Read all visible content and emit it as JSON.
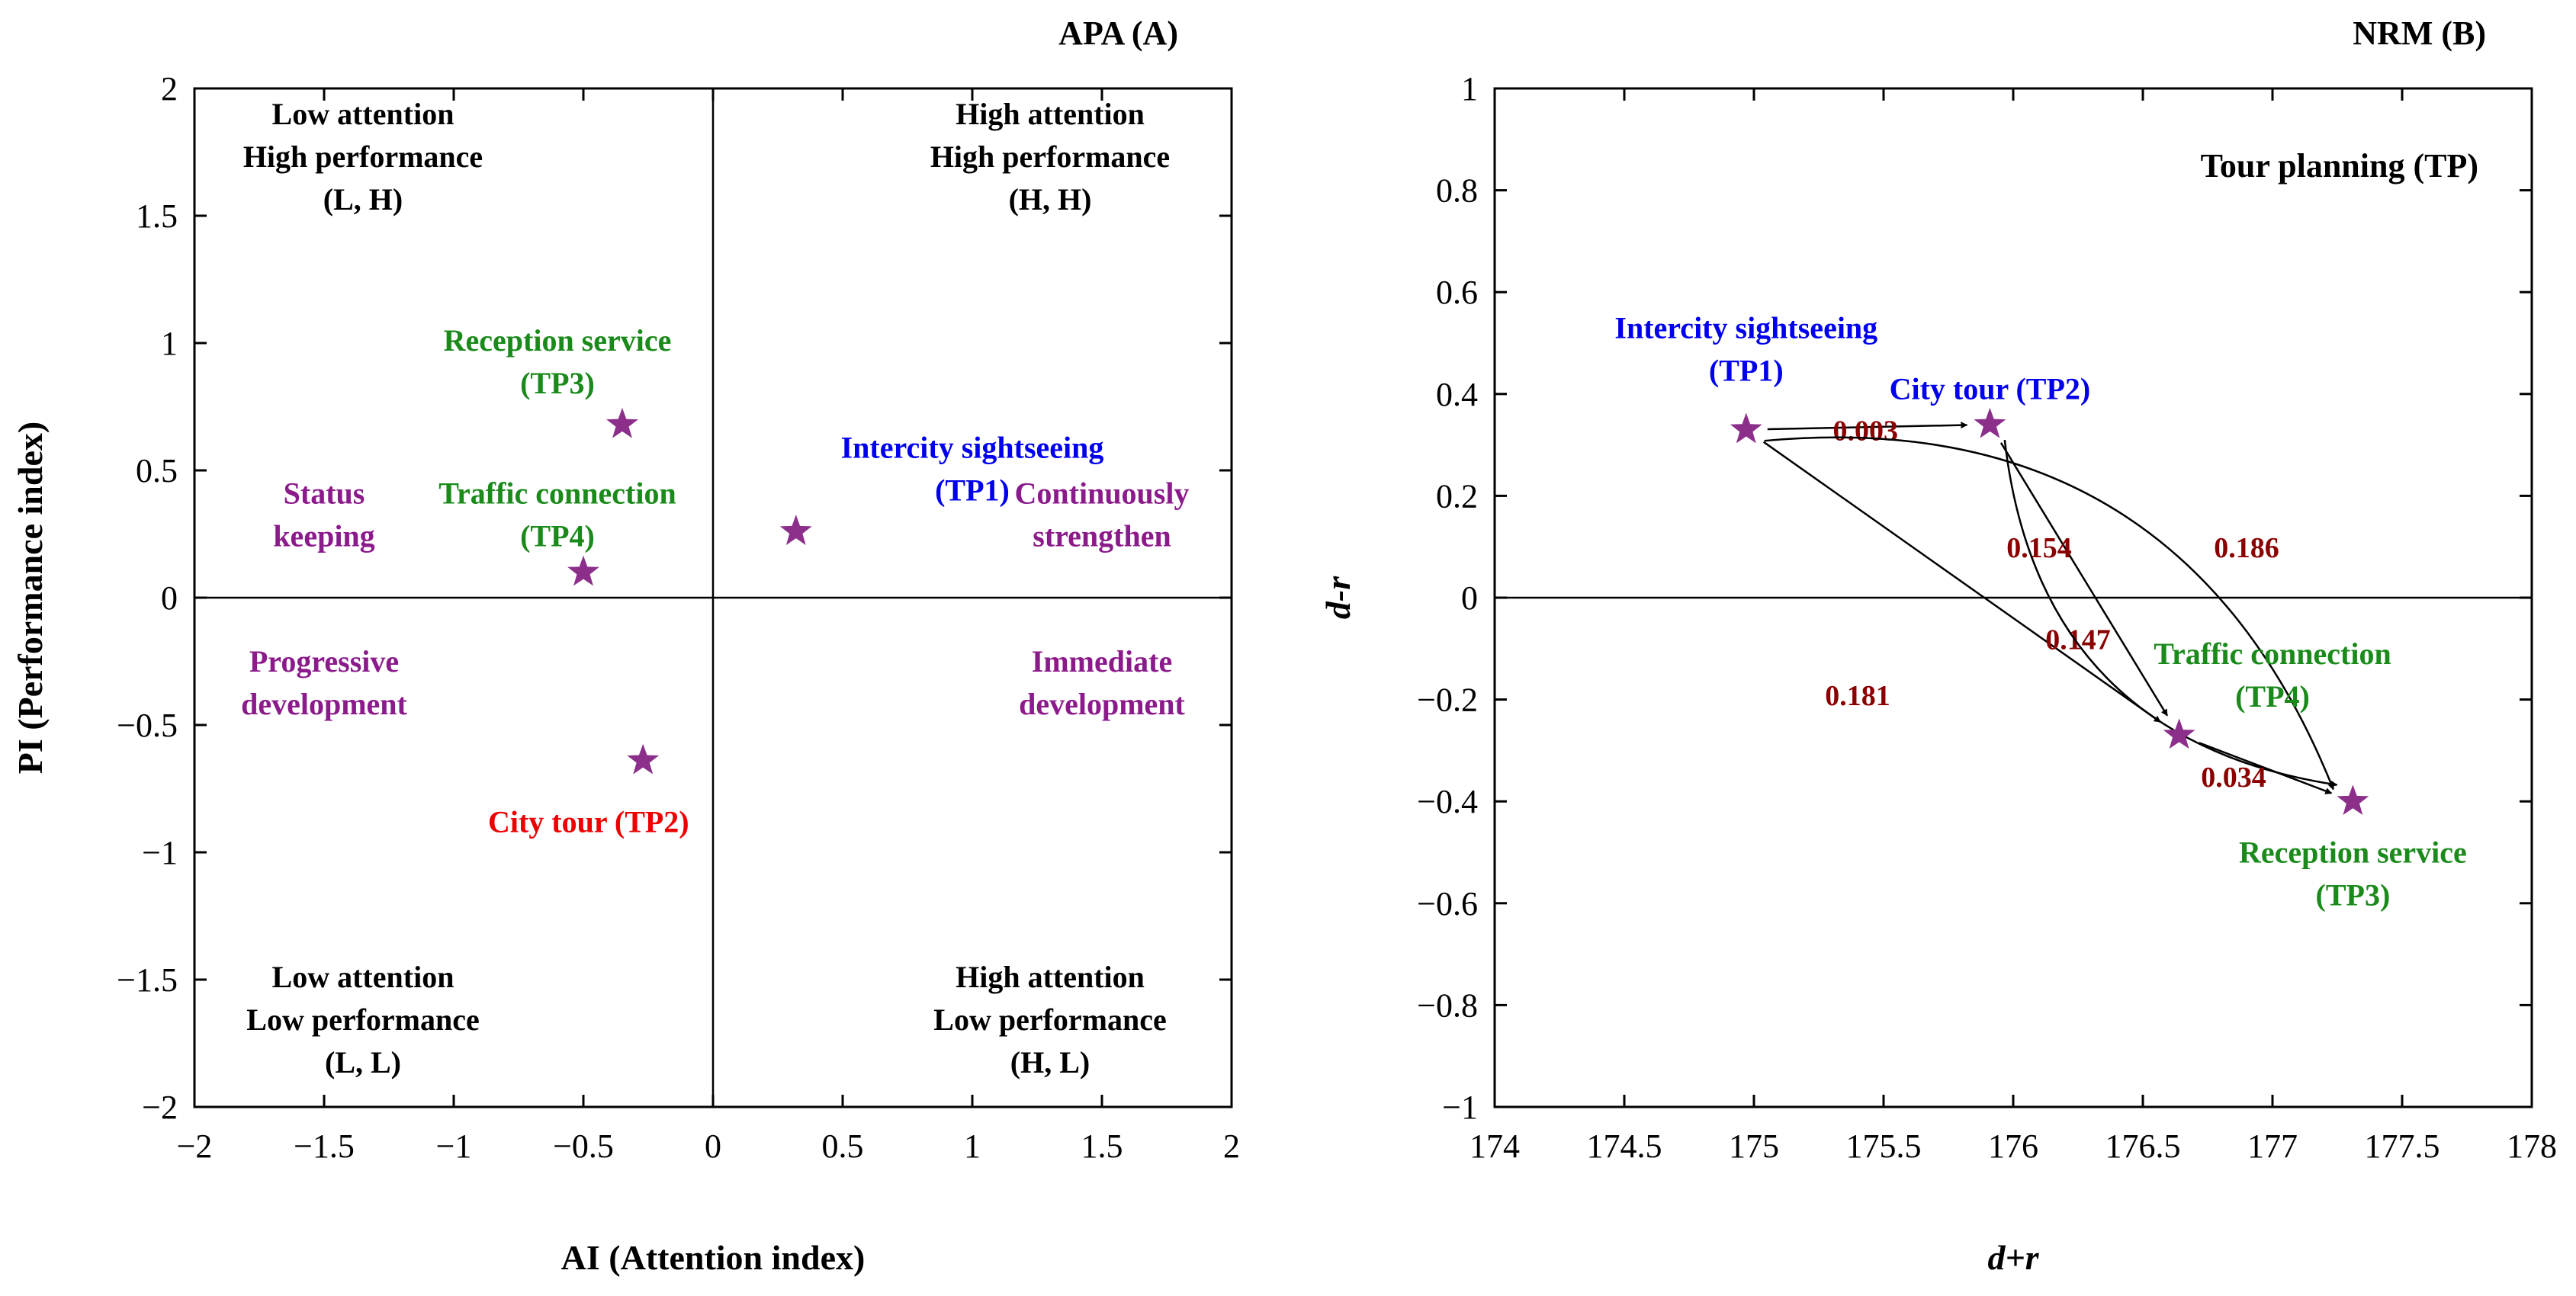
{
  "chart_data": [
    {
      "type": "scatter",
      "panel": "A",
      "title": "APA (A)",
      "xlabel": "AI (Attention index)",
      "ylabel": "PI (Performance index)",
      "xlim": [
        -2,
        2
      ],
      "ylim": [
        -2,
        2
      ],
      "x_ticks": [
        -2,
        -1.5,
        -1,
        -0.5,
        0,
        0.5,
        1,
        1.5,
        2
      ],
      "y_ticks": [
        -2,
        -1.5,
        -1,
        -0.5,
        0,
        0.5,
        1,
        1.5,
        2
      ],
      "x_tick_labels": [
        "−2",
        "−1.5",
        "−1",
        "−0.5",
        "0",
        "0.5",
        "1",
        "1.5",
        "2"
      ],
      "y_tick_labels": [
        "−2",
        "−1.5",
        "−1",
        "−0.5",
        "0",
        "0.5",
        "1",
        "1.5",
        "2"
      ],
      "points": [
        {
          "id": "TP1",
          "x": 0.32,
          "y": 0.26,
          "label": [
            "Intercity sightseeing",
            "(TP1)"
          ],
          "label_color": "#0000ee",
          "label_anchor": [
            1.0,
            0.55
          ]
        },
        {
          "id": "TP2",
          "x": -0.27,
          "y": -0.64,
          "label": [
            "City tour (TP2)"
          ],
          "label_color": "#ee0000",
          "label_anchor": [
            -0.48,
            -0.92
          ]
        },
        {
          "id": "TP3",
          "x": -0.35,
          "y": 0.68,
          "label": [
            "Reception service",
            "(TP3)"
          ],
          "label_color": "#1a8a1a",
          "label_anchor": [
            -0.6,
            0.97
          ]
        },
        {
          "id": "TP4",
          "x": -0.5,
          "y": 0.1,
          "label": [
            "Traffic connection",
            "(TP4)"
          ],
          "label_color": "#1a8a1a",
          "label_anchor": [
            -0.6,
            0.37
          ]
        }
      ],
      "quadrant_labels": [
        {
          "lines": [
            "Low attention",
            "High performance",
            "(L, H)"
          ],
          "color": "#000000",
          "anchor": [
            -1.35,
            1.86
          ]
        },
        {
          "lines": [
            "High attention",
            "High performance",
            "(H, H)"
          ],
          "color": "#000000",
          "anchor": [
            1.3,
            1.86
          ]
        },
        {
          "lines": [
            "Low attention",
            "Low performance",
            "(L, L)"
          ],
          "color": "#000000",
          "anchor": [
            -1.35,
            -1.53
          ]
        },
        {
          "lines": [
            "High attention",
            "Low performance",
            "(H, L)"
          ],
          "color": "#000000",
          "anchor": [
            1.3,
            -1.53
          ]
        }
      ],
      "strategy_labels": [
        {
          "lines": [
            "Status",
            "keeping"
          ],
          "color": "#8b1a8b",
          "anchor": [
            -1.5,
            0.37
          ]
        },
        {
          "lines": [
            "Continuously",
            "strengthen"
          ],
          "color": "#8b1a8b",
          "anchor": [
            1.5,
            0.37
          ]
        },
        {
          "lines": [
            "Progressive",
            "development"
          ],
          "color": "#8b1a8b",
          "anchor": [
            -1.5,
            -0.29
          ]
        },
        {
          "lines": [
            "Immediate",
            "development"
          ],
          "color": "#8b1a8b",
          "anchor": [
            1.5,
            -0.29
          ]
        }
      ]
    },
    {
      "type": "scatter",
      "panel": "B",
      "title": "NRM (B)",
      "subtitle": "Tour planning (TP)",
      "xlabel": "d+r",
      "ylabel": "d-r",
      "xlim": [
        174,
        178
      ],
      "ylim": [
        -1,
        1
      ],
      "x_ticks": [
        174,
        174.5,
        175,
        175.5,
        176,
        176.5,
        177,
        177.5,
        178
      ],
      "y_ticks": [
        -1,
        -0.8,
        -0.6,
        -0.4,
        -0.2,
        0,
        0.2,
        0.4,
        0.6,
        0.8,
        1
      ],
      "x_tick_labels": [
        "174",
        "174.5",
        "175",
        "175.5",
        "176",
        "176.5",
        "177",
        "177.5",
        "178"
      ],
      "y_tick_labels": [
        "−1",
        "−0.8",
        "−0.6",
        "−0.4",
        "−0.2",
        "0",
        "0.2",
        "0.4",
        "0.6",
        "0.8",
        "1"
      ],
      "points": [
        {
          "id": "TP1",
          "x": 174.97,
          "y": 0.33,
          "label": [
            "Intercity sightseeing",
            "(TP1)"
          ],
          "label_color": "#0000ee",
          "label_anchor": [
            174.97,
            0.51
          ]
        },
        {
          "id": "TP2",
          "x": 175.91,
          "y": 0.34,
          "label": [
            "City tour (TP2)"
          ],
          "label_color": "#0000ee",
          "label_anchor": [
            175.91,
            0.39
          ]
        },
        {
          "id": "TP3",
          "x": 177.31,
          "y": -0.4,
          "label": [
            "Reception service",
            "(TP3)"
          ],
          "label_color": "#1a8a1a",
          "label_anchor": [
            177.31,
            -0.52
          ]
        },
        {
          "id": "TP4",
          "x": 176.64,
          "y": -0.27,
          "label": [
            "Traffic connection",
            "(TP4)"
          ],
          "label_color": "#1a8a1a",
          "label_anchor": [
            177.0,
            -0.13
          ]
        }
      ],
      "relations": [
        {
          "from": "TP1",
          "to": "TP2",
          "weight": "0.003",
          "weight_anchor": [
            175.43,
            0.33
          ],
          "curve": "straight"
        },
        {
          "from": "TP1",
          "to": "TP4",
          "weight": "0.147",
          "weight_anchor": [
            176.25,
            -0.08
          ],
          "curve": "straight"
        },
        {
          "from": "TP1",
          "to": "TP3",
          "weight": "0.181",
          "weight_anchor": [
            175.4,
            -0.19
          ],
          "curve": "arc"
        },
        {
          "from": "TP2",
          "to": "TP4",
          "weight": "0.154",
          "weight_anchor": [
            176.1,
            0.1
          ],
          "curve": "straight"
        },
        {
          "from": "TP2",
          "to": "TP3",
          "weight": "0.186",
          "weight_anchor": [
            176.9,
            0.1
          ],
          "curve": "arc"
        },
        {
          "from": "TP4",
          "to": "TP3",
          "weight": "0.034",
          "weight_anchor": [
            176.85,
            -0.35
          ],
          "curve": "straight"
        }
      ]
    }
  ],
  "colors": {
    "star": "#8b2f8b",
    "weight": "#8b0000",
    "axis": "#000000"
  }
}
